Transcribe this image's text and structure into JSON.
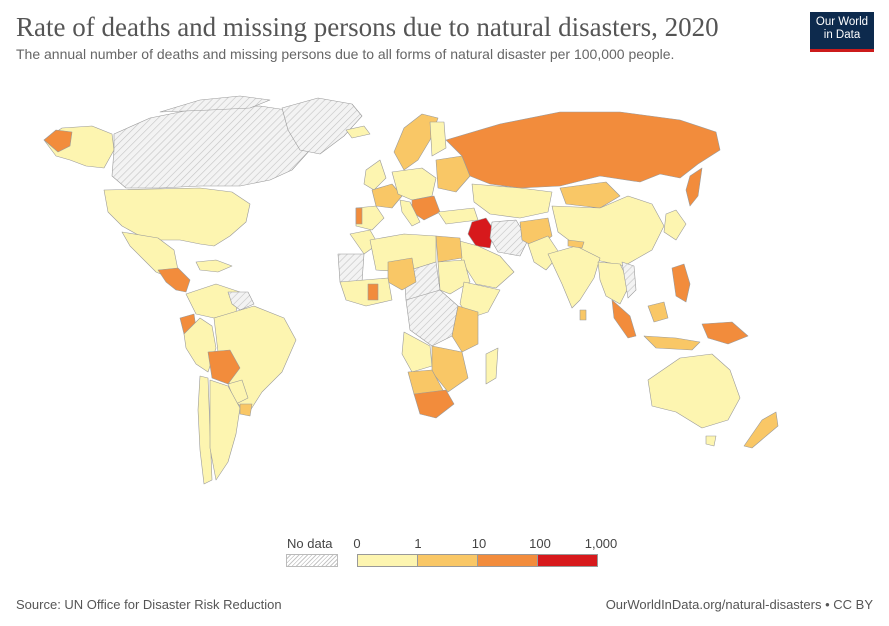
{
  "header": {
    "title": "Rate of deaths and missing persons due to natural disasters, 2020",
    "subtitle": "The annual number of deaths and missing persons due to all forms of natural disaster per 100,000 people."
  },
  "logo": {
    "line1": "Our World",
    "line2": "in Data"
  },
  "legend": {
    "nodata_label": "No data",
    "ticks": [
      "0",
      "1",
      "10",
      "100",
      "1,000"
    ],
    "bins": [
      "#fdf5b0",
      "#f9c766",
      "#f28c3c",
      "#d7191c"
    ]
  },
  "colors": {
    "nodata": "#e8e8e8",
    "bin0": "#fdf5b0",
    "bin1": "#f9c766",
    "bin2": "#f28c3c",
    "bin3": "#d7191c",
    "border": "#9a9a9a"
  },
  "footer": {
    "source": "Source: UN Office for Disaster Risk Reduction",
    "credit": "OurWorldInData.org/natural-disasters • CC BY"
  }
}
